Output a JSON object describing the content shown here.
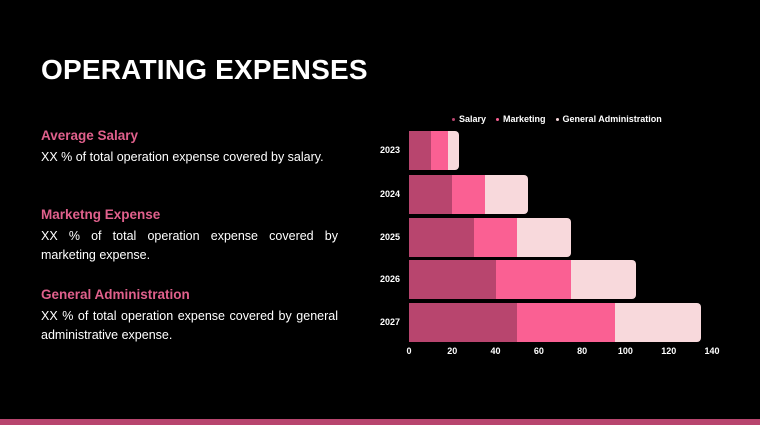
{
  "page": {
    "title": "OPERATING EXPENSES"
  },
  "sections": [
    {
      "title": "Average Salary",
      "body": "XX % of total operation expense covered by salary."
    },
    {
      "title": "Marketng Expense",
      "body": "XX % of total operation expense covered by marketing expense."
    },
    {
      "title": "General Administration",
      "body": "XX % of total operation expense covered by general administrative expense."
    }
  ],
  "colors": {
    "background": "#000000",
    "accent": "#E0608C",
    "salary": "#B8456E",
    "marketing": "#FA6093",
    "general_administration": "#F8D9DC",
    "bottom_strip": "#B8456E"
  },
  "chart_data": {
    "type": "bar",
    "orientation": "horizontal",
    "stacked": true,
    "title": "",
    "xlabel": "",
    "ylabel": "",
    "categories": [
      "2023",
      "2024",
      "2025",
      "2026",
      "2027"
    ],
    "series": [
      {
        "name": "Salary",
        "color": "#B8456E",
        "values": [
          10,
          20,
          30,
          40,
          50
        ]
      },
      {
        "name": "Marketing",
        "color": "#FA6093",
        "values": [
          8,
          15,
          20,
          35,
          45
        ]
      },
      {
        "name": "General Administration",
        "color": "#F8D9DC",
        "values": [
          5,
          20,
          25,
          30,
          40
        ]
      }
    ],
    "totals": [
      23,
      55,
      75,
      105,
      135
    ],
    "xlim": [
      0,
      140
    ],
    "x_ticks": [
      "0",
      "20",
      "40",
      "60",
      "80",
      "100",
      "120",
      "140"
    ],
    "legend": [
      "Salary",
      "Marketing",
      "General Administration"
    ],
    "legend_position": "top",
    "grid": false
  }
}
